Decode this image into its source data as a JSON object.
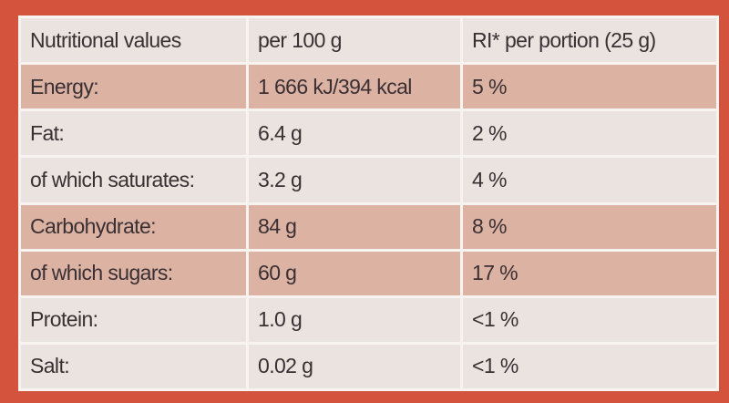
{
  "table": {
    "header": [
      "Nutritional values",
      "per 100 g",
      "RI* per portion (25 g)"
    ],
    "rows": [
      [
        "Energy:",
        "1 666 kJ/394 kcal",
        "5 %"
      ],
      [
        "Fat:",
        "6.4 g",
        "2 %"
      ],
      [
        "of which saturates:",
        "3.2 g",
        "4 %"
      ],
      [
        "Carbohydrate:",
        "84 g",
        "8 %"
      ],
      [
        "of which sugars:",
        "60 g",
        "17 %"
      ],
      [
        "Protein:",
        "1.0 g",
        "<1 %"
      ],
      [
        "Salt:",
        "0.02 g",
        "<1 %"
      ]
    ]
  }
}
